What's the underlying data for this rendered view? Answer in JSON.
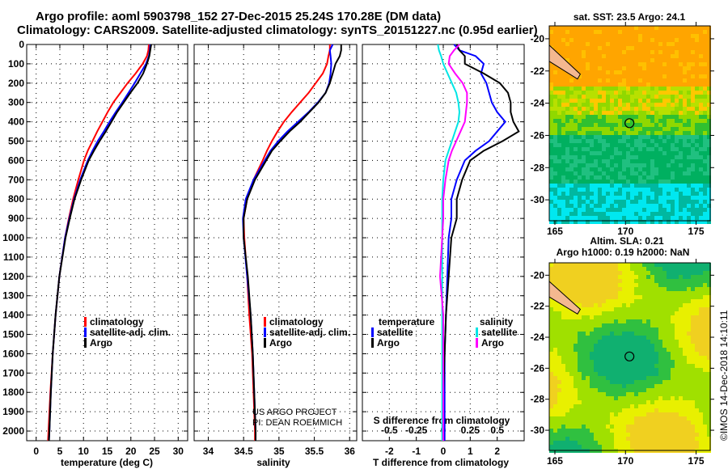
{
  "title_line1": "Argo profile: aoml 5903798_152 27-Dec-2015 25.24S 170.28E (DM data)",
  "title_line2": "Climatology: CARS2009. Satellite-adjusted climatology: synTS_20151227.nc (0.95d earlier)",
  "credit1": "US ARGO PROJECT",
  "credit2": "PI: DEAN ROEMMICH",
  "stamp": "©IMOS 14-Dec-2018 14:10:11",
  "colors": {
    "clim": "#ff0000",
    "sat": "#0000ff",
    "argo": "#000000",
    "sal_sat": "#00e5e5",
    "sal_argo": "#ff00ff"
  },
  "chart_data": [
    {
      "type": "line",
      "id": "temp",
      "xlabel": "temperature (deg C)",
      "ylabel": "",
      "xlim": [
        -2,
        32
      ],
      "ylim": [
        2050,
        0
      ],
      "xticks": [
        0,
        5,
        10,
        15,
        20,
        25,
        30
      ],
      "yticks": [
        0,
        100,
        200,
        300,
        400,
        500,
        600,
        700,
        800,
        900,
        1000,
        1100,
        1200,
        1300,
        1400,
        1500,
        1600,
        1700,
        1800,
        1900,
        2000
      ],
      "depth": [
        0,
        30,
        60,
        100,
        150,
        200,
        250,
        300,
        350,
        400,
        450,
        500,
        550,
        600,
        700,
        800,
        900,
        1000,
        1200,
        1400,
        1600,
        1800,
        2000,
        2050
      ],
      "legend": [
        "climatology",
        "satellite-adj. clim.",
        "Argo"
      ],
      "series": [
        {
          "name": "climatology",
          "values": [
            23.8,
            23.7,
            23.4,
            22.5,
            21.0,
            19.3,
            17.8,
            16.3,
            15.1,
            14.0,
            12.9,
            11.9,
            10.9,
            10.1,
            8.9,
            7.8,
            6.9,
            6.1,
            4.9,
            4.1,
            3.5,
            3.0,
            2.6,
            2.5
          ]
        },
        {
          "name": "satellite-adj. clim.",
          "values": [
            24.1,
            24.0,
            23.8,
            23.2,
            22.0,
            20.8,
            19.5,
            18.2,
            16.8,
            15.5,
            14.3,
            13.0,
            11.9,
            10.9,
            9.3,
            8.0,
            7.0,
            6.1,
            4.9,
            4.1,
            3.5,
            3.1,
            2.8,
            2.7
          ]
        },
        {
          "name": "Argo",
          "values": [
            24.3,
            24.1,
            23.9,
            23.4,
            22.6,
            21.4,
            19.9,
            18.5,
            17.1,
            15.9,
            14.7,
            13.4,
            12.2,
            11.1,
            9.5,
            8.1,
            7.1,
            6.2,
            4.9,
            4.1,
            3.5,
            3.1,
            2.8,
            2.7
          ]
        }
      ]
    },
    {
      "type": "line",
      "id": "sal",
      "xlabel": "salinity",
      "ylabel": "",
      "xlim": [
        33.8,
        36.1
      ],
      "ylim": [
        2050,
        0
      ],
      "xticks": [
        34,
        34.5,
        35,
        35.5,
        36
      ],
      "depth": [
        0,
        30,
        60,
        100,
        150,
        200,
        250,
        300,
        350,
        400,
        450,
        500,
        550,
        600,
        700,
        800,
        900,
        1000,
        1200,
        1400,
        1600,
        1800,
        2000,
        2050
      ],
      "legend": [
        "climatology",
        "satellite-adj. clim.",
        "Argo"
      ],
      "series": [
        {
          "name": "climatology",
          "values": [
            35.72,
            35.72,
            35.7,
            35.68,
            35.62,
            35.52,
            35.42,
            35.3,
            35.18,
            35.07,
            34.98,
            34.9,
            34.83,
            34.77,
            34.64,
            34.55,
            34.5,
            34.51,
            34.55,
            34.58,
            34.62,
            34.64,
            34.66,
            34.66
          ]
        },
        {
          "name": "satellite-adj. clim.",
          "values": [
            35.76,
            35.72,
            35.73,
            35.74,
            35.73,
            35.71,
            35.66,
            35.55,
            35.42,
            35.27,
            35.12,
            34.99,
            34.88,
            34.8,
            34.64,
            34.53,
            34.49,
            34.5,
            34.55,
            34.6,
            34.63,
            34.65,
            34.67,
            34.67
          ]
        },
        {
          "name": "Argo",
          "values": [
            35.88,
            35.88,
            35.86,
            35.8,
            35.76,
            35.72,
            35.66,
            35.56,
            35.43,
            35.3,
            35.15,
            35.02,
            34.9,
            34.82,
            34.66,
            34.55,
            34.5,
            34.5,
            34.56,
            34.6,
            34.63,
            34.65,
            34.67,
            34.67
          ]
        }
      ]
    },
    {
      "type": "line",
      "id": "diff",
      "xlabel": "T difference from climatology",
      "xlabel2": "S difference from climatology",
      "xlim": [
        -3,
        3
      ],
      "ylim": [
        2050,
        0
      ],
      "xticks": [
        -2,
        -1,
        0,
        1,
        2
      ],
      "xticks2": [
        "-0.5",
        "-0.25",
        "0",
        "0.25",
        "0.5"
      ],
      "s_scale": 4,
      "legend_t_title": "temperature",
      "legend_s_title": "salinity",
      "legend": [
        "satellite",
        "Argo",
        "satellite",
        "Argo"
      ],
      "depth": [
        0,
        30,
        60,
        100,
        150,
        200,
        250,
        300,
        350,
        400,
        450,
        500,
        550,
        600,
        700,
        800,
        900,
        1000,
        1200,
        1400,
        1600,
        1800,
        2000,
        2050
      ],
      "series": [
        {
          "name": "T satellite",
          "values": [
            0.4,
            0.6,
            1.2,
            1.5,
            1.4,
            1.6,
            1.7,
            1.8,
            2.0,
            2.3,
            2.0,
            1.7,
            1.2,
            0.8,
            0.5,
            0.3,
            0.3,
            0.2,
            0.15,
            0.1,
            0.05,
            0.05,
            0.05,
            0.05
          ]
        },
        {
          "name": "T Argo",
          "values": [
            0.5,
            0.6,
            0.8,
            0.8,
            1.5,
            2.1,
            2.4,
            2.5,
            2.5,
            2.6,
            2.8,
            2.2,
            1.5,
            1.0,
            0.7,
            0.5,
            0.5,
            0.3,
            0.2,
            0.1,
            0.05,
            0.0,
            0.0,
            0.0
          ]
        },
        {
          "name": "S satellite",
          "values": [
            -0.05,
            -0.04,
            -0.02,
            0.0,
            0.04,
            0.08,
            0.12,
            0.14,
            0.15,
            0.14,
            0.11,
            0.08,
            0.05,
            0.02,
            0.0,
            -0.01,
            -0.01,
            -0.01,
            -0.01,
            -0.01,
            -0.01,
            -0.01,
            -0.01,
            -0.01
          ]
        },
        {
          "name": "S Argo",
          "values": [
            0.15,
            0.1,
            0.06,
            0.05,
            0.11,
            0.18,
            0.22,
            0.22,
            0.21,
            0.2,
            0.16,
            0.12,
            0.08,
            0.05,
            0.02,
            0.0,
            0.0,
            -0.01,
            -0.03,
            0.0,
            0.0,
            0.0,
            0.0,
            0.0
          ]
        }
      ]
    },
    {
      "type": "heatmap",
      "id": "sst",
      "title": "sat. SST: 23.5 Argo: 24.1",
      "xticks": [
        165,
        170,
        175
      ],
      "yticks": [
        -20,
        -22,
        -24,
        -26,
        -28,
        -30
      ],
      "xlim": [
        164.6,
        176
      ],
      "ylim": [
        -31.3,
        -19.2
      ],
      "argo_position": [
        170.28,
        -25.24
      ]
    },
    {
      "type": "heatmap",
      "id": "sla",
      "title1": "Altim. SLA: 0.21",
      "title2": "Argo h1000: 0.19 h2000: NaN",
      "xticks": [
        165,
        170,
        175
      ],
      "yticks": [
        -20,
        -22,
        -24,
        -26,
        -28,
        -30
      ],
      "xlim": [
        164.6,
        176
      ],
      "ylim": [
        -31.3,
        -19.2
      ],
      "argo_position": [
        170.28,
        -25.24
      ]
    }
  ]
}
